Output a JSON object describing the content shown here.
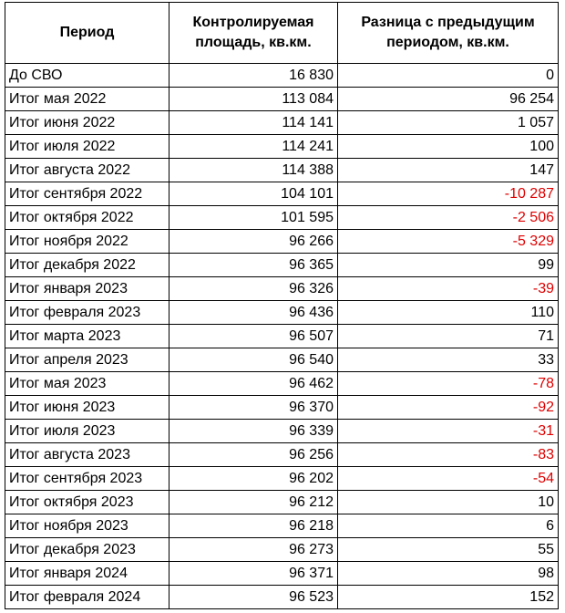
{
  "table": {
    "header": [
      "Период",
      "Контролируемая площадь, кв.км.",
      "Разница с предыдущим периодом, кв.км."
    ],
    "rows": [
      [
        "До СВО",
        "16 830",
        "0"
      ],
      [
        "Итог мая 2022",
        "113 084",
        "96 254"
      ],
      [
        "Итог июня 2022",
        "114 141",
        "1 057"
      ],
      [
        "Итог июля 2022",
        "114 241",
        "100"
      ],
      [
        "Итог августа 2022",
        "114 388",
        "147"
      ],
      [
        "Итог сентября 2022",
        "104 101",
        "-10 287"
      ],
      [
        "Итог октября 2022",
        "101 595",
        "-2 506"
      ],
      [
        "Итог ноября 2022",
        "96 266",
        "-5 329"
      ],
      [
        "Итог декабря 2022",
        "96 365",
        "99"
      ],
      [
        "Итог января 2023",
        "96 326",
        "-39"
      ],
      [
        "Итог февраля 2023",
        "96 436",
        "110"
      ],
      [
        "Итог марта 2023",
        "96 507",
        "71"
      ],
      [
        "Итог апреля 2023",
        "96 540",
        "33"
      ],
      [
        "Итог мая 2023",
        "96 462",
        "-78"
      ],
      [
        "Итог июня 2023",
        "96 370",
        "-92"
      ],
      [
        "Итог июля 2023",
        "96 339",
        "-31"
      ],
      [
        "Итог августа 2023",
        "96 256",
        "-83"
      ],
      [
        "Итог сентября 2023",
        "96 202",
        "-54"
      ],
      [
        "Итог октября 2023",
        "96 212",
        "10"
      ],
      [
        "Итог ноября 2023",
        "96 218",
        "6"
      ],
      [
        "Итог декабря 2023",
        "96 273",
        "55"
      ],
      [
        "Итог января 2024",
        "96 371",
        "98"
      ],
      [
        "Итог февраля 2024",
        "96 523",
        "152"
      ]
    ]
  }
}
